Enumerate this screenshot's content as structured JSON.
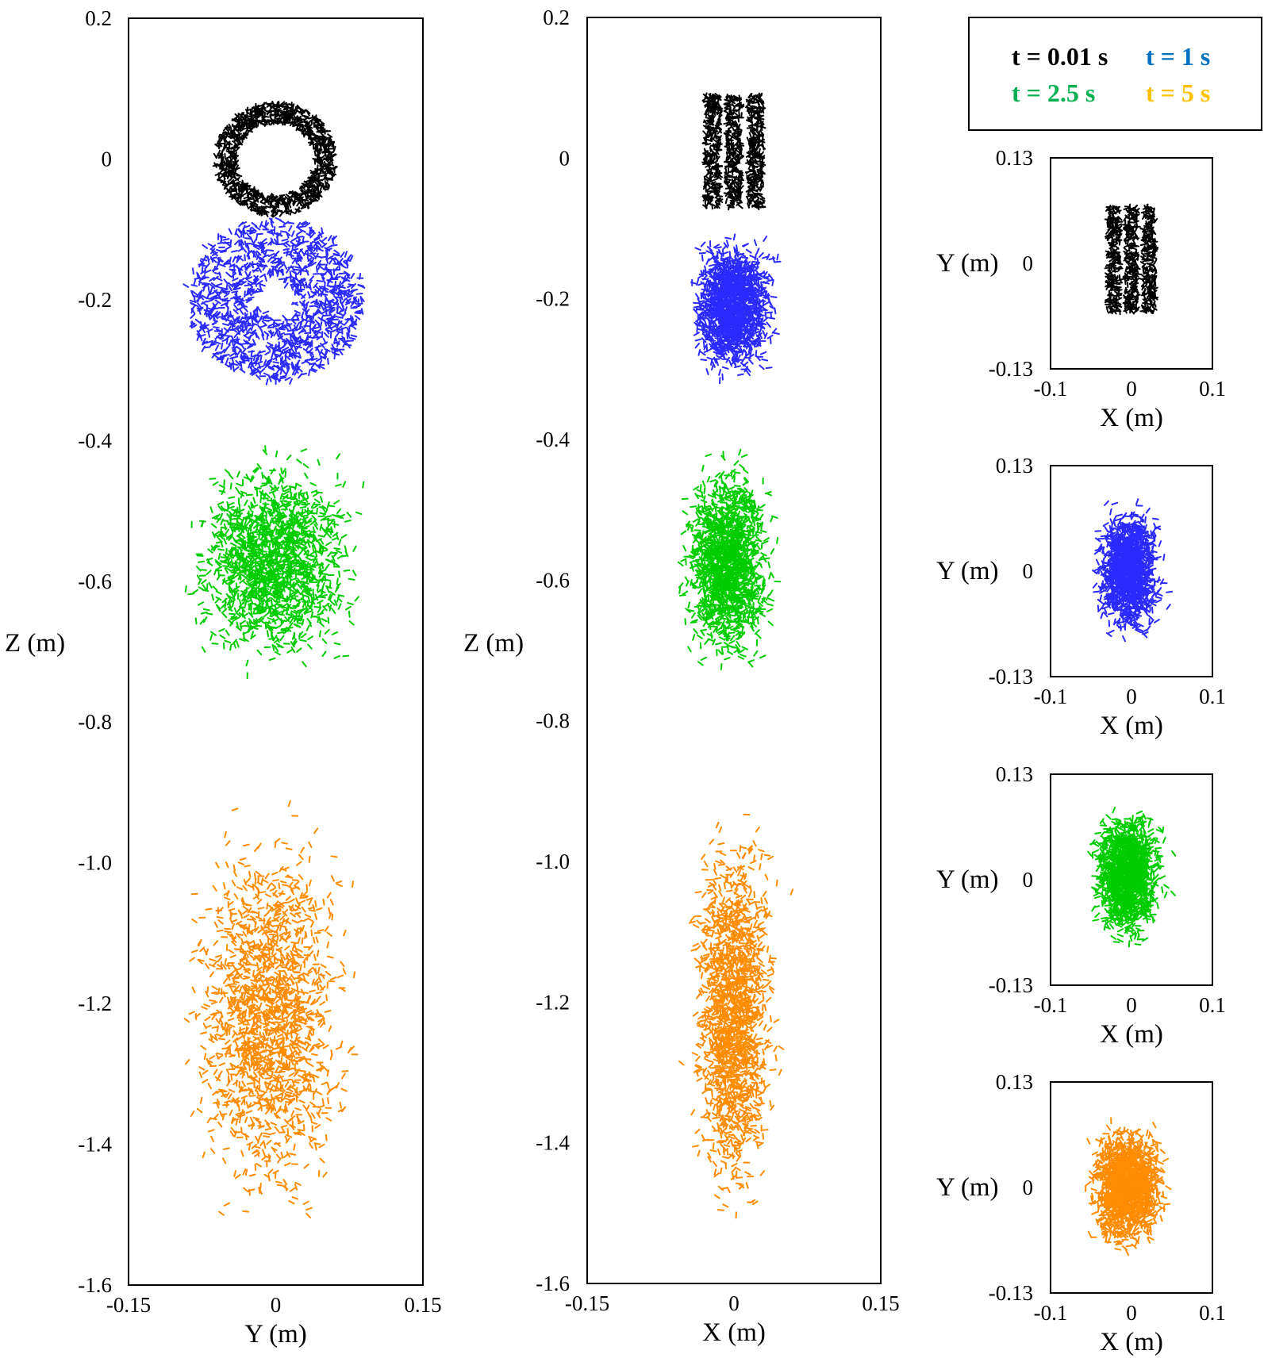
{
  "figure": {
    "legend": {
      "entries": [
        {
          "label": "t = 0.01 s",
          "color": "#000000"
        },
        {
          "label": "t = 1 s",
          "color": "#0070C0"
        },
        {
          "label": "t = 2.5 s",
          "color": "#00B050"
        },
        {
          "label": "t = 5 s",
          "color": "#FFC000"
        }
      ]
    },
    "marker_colors": {
      "t001": "#000000",
      "t1": "#2b2bff",
      "t25": "#00cc00",
      "t5": "#ff8c00"
    }
  },
  "chart_data": [
    {
      "id": "yz-view",
      "type": "scatter",
      "title": "",
      "xlabel": "Y (m)",
      "ylabel": "Z (m)",
      "xlim": [
        -0.15,
        0.15
      ],
      "ylim": [
        -1.6,
        0.2
      ],
      "xticks": [
        "-0.15",
        "0",
        "0.15"
      ],
      "yticks": [
        "0.2",
        "0",
        "-0.2",
        "-0.4",
        "-0.6",
        "-0.8",
        "-1.0",
        "-1.2",
        "-1.4",
        "-1.6"
      ],
      "grid": false,
      "series": [
        {
          "name": "t = 0.01 s",
          "shape": "ring",
          "center": [
            0.0,
            0.0
          ],
          "radius_outer": 0.062,
          "radius_inner": 0.04,
          "z_range": [
            -0.07,
            0.09
          ]
        },
        {
          "name": "t = 1 s",
          "shape": "ring",
          "center": [
            0.0,
            -0.2
          ],
          "radius_outer": 0.09,
          "radius_inner": 0.02,
          "z_range": [
            -0.32,
            -0.09
          ]
        },
        {
          "name": "t = 2.5 s",
          "shape": "cloud",
          "center": [
            0.0,
            -0.58
          ],
          "y_range": [
            -0.1,
            0.1
          ],
          "z_range": [
            -0.74,
            -0.4
          ]
        },
        {
          "name": "t = 5 s",
          "shape": "cloud",
          "center": [
            0.0,
            -1.13
          ],
          "y_range": [
            -0.1,
            0.09
          ],
          "z_range": [
            -1.54,
            -0.9
          ]
        }
      ]
    },
    {
      "id": "xz-view",
      "type": "scatter",
      "title": "",
      "xlabel": "X (m)",
      "ylabel": "Z (m)",
      "xlim": [
        -0.15,
        0.15
      ],
      "ylim": [
        -1.6,
        0.2
      ],
      "xticks": [
        "-0.15",
        "0",
        "0.15"
      ],
      "yticks": [
        "0.2",
        "0",
        "-0.2",
        "-0.4",
        "-0.6",
        "-0.8",
        "-1.0",
        "-1.2",
        "-1.4",
        "-1.6"
      ],
      "grid": false,
      "series": [
        {
          "name": "t = 0.01 s",
          "shape": "stripes",
          "stripe_x": [
            -0.022,
            0.0,
            0.022
          ],
          "x_range": [
            -0.03,
            0.03
          ],
          "z_range": [
            -0.07,
            0.09
          ]
        },
        {
          "name": "t = 1 s",
          "shape": "cloud",
          "x_range": [
            -0.05,
            0.05
          ],
          "z_range": [
            -0.32,
            -0.1
          ]
        },
        {
          "name": "t = 2.5 s",
          "shape": "cloud",
          "x_range": [
            -0.06,
            0.05
          ],
          "z_range": [
            -0.74,
            -0.41
          ]
        },
        {
          "name": "t = 5 s",
          "shape": "cloud",
          "x_range": [
            -0.05,
            0.05
          ],
          "z_range": [
            -1.54,
            -0.9
          ]
        }
      ]
    },
    {
      "id": "xy-t001",
      "type": "scatter",
      "title": "",
      "xlabel": "X (m)",
      "ylabel": "Y (m)",
      "xlim": [
        -0.1,
        0.1
      ],
      "ylim": [
        -0.13,
        0.13
      ],
      "xticks": [
        "-0.1",
        "0",
        "0.1"
      ],
      "yticks": [
        "0.13",
        "0",
        "-0.13"
      ],
      "grid": false,
      "series": [
        {
          "name": "t = 0.01 s",
          "shape": "stripes",
          "stripe_x": [
            -0.022,
            0.0,
            0.022
          ],
          "x_range": [
            -0.03,
            0.03
          ],
          "y_range": [
            -0.06,
            0.07
          ]
        }
      ]
    },
    {
      "id": "xy-t1",
      "type": "scatter",
      "title": "",
      "xlabel": "X (m)",
      "ylabel": "Y (m)",
      "xlim": [
        -0.1,
        0.1
      ],
      "ylim": [
        -0.13,
        0.13
      ],
      "xticks": [
        "-0.1",
        "0",
        "0.1"
      ],
      "yticks": [
        "0.13",
        "0",
        "-0.13"
      ],
      "grid": false,
      "series": [
        {
          "name": "t = 1 s",
          "shape": "cloud",
          "x_range": [
            -0.05,
            0.045
          ],
          "y_range": [
            -0.09,
            0.09
          ]
        }
      ]
    },
    {
      "id": "xy-t25",
      "type": "scatter",
      "title": "",
      "xlabel": "X (m)",
      "ylabel": "Y (m)",
      "xlim": [
        -0.1,
        0.1
      ],
      "ylim": [
        -0.13,
        0.13
      ],
      "xticks": [
        "-0.1",
        "0",
        "0.1"
      ],
      "yticks": [
        "0.13",
        "0",
        "-0.13"
      ],
      "grid": false,
      "series": [
        {
          "name": "t = 2.5 s",
          "shape": "cloud",
          "x_range": [
            -0.055,
            0.045
          ],
          "y_range": [
            -0.09,
            0.1
          ]
        }
      ]
    },
    {
      "id": "xy-t5",
      "type": "scatter",
      "title": "",
      "xlabel": "X (m)",
      "ylabel": "Y (m)",
      "xlim": [
        -0.1,
        0.1
      ],
      "ylim": [
        -0.13,
        0.13
      ],
      "xticks": [
        "-0.1",
        "0",
        "0.1"
      ],
      "yticks": [
        "0.13",
        "0",
        "-0.13"
      ],
      "grid": false,
      "series": [
        {
          "name": "t = 5 s",
          "shape": "cloud",
          "x_range": [
            -0.06,
            0.05
          ],
          "y_range": [
            -0.09,
            0.09
          ]
        }
      ]
    }
  ]
}
